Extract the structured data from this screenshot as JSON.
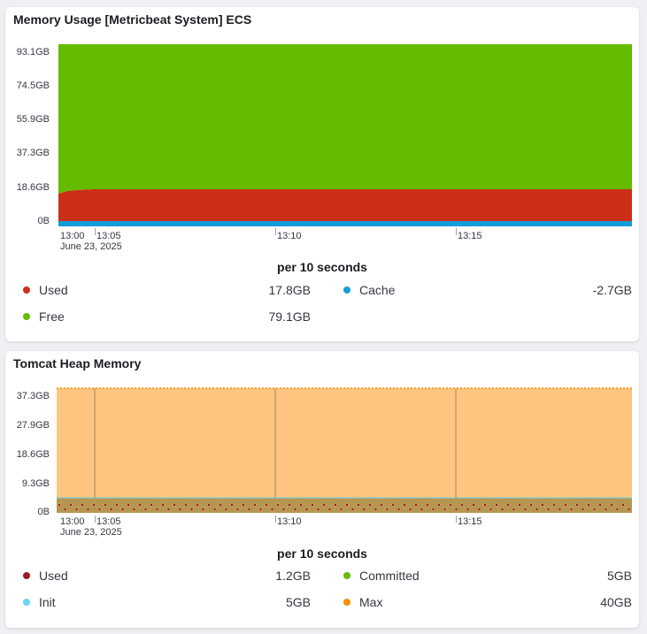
{
  "panel1": {
    "title": "Memory Usage [Metricbeat System] ECS",
    "y_ticks": [
      "93.1GB",
      "74.5GB",
      "55.9GB",
      "37.3GB",
      "18.6GB",
      "0B"
    ],
    "x_ticks": [
      "13:00",
      "13:05",
      "13:10",
      "13:15"
    ],
    "x_date": "June 23, 2025",
    "interval": "per 10 seconds",
    "legend": [
      {
        "name": "Used",
        "value": "17.8GB",
        "color": "#cc2f18"
      },
      {
        "name": "Cache",
        "value": "-2.7GB",
        "color": "#169cd8"
      },
      {
        "name": "Free",
        "value": "79.1GB",
        "color": "#64bb00"
      }
    ]
  },
  "panel2": {
    "title": "Tomcat Heap Memory",
    "y_ticks": [
      "37.3GB",
      "27.9GB",
      "18.6GB",
      "9.3GB",
      "0B"
    ],
    "x_ticks": [
      "13:00",
      "13:05",
      "13:10",
      "13:15"
    ],
    "x_date": "June 23, 2025",
    "interval": "per 10 seconds",
    "legend": [
      {
        "name": "Used",
        "value": "1.2GB",
        "color": "#9b1c1c"
      },
      {
        "name": "Committed",
        "value": "5GB",
        "color": "#64bb00"
      },
      {
        "name": "Init",
        "value": "5GB",
        "color": "#6ed3f2"
      },
      {
        "name": "Max",
        "value": "40GB",
        "color": "#f5900a"
      }
    ]
  },
  "chart_data": [
    {
      "type": "area",
      "title": "Memory Usage [Metricbeat System] ECS",
      "x": [
        "13:00",
        "13:05",
        "13:10",
        "13:15",
        "13:19"
      ],
      "ylim": [
        0,
        93.1
      ],
      "series": [
        {
          "name": "Used",
          "values": [
            15.8,
            17.8,
            17.8,
            17.8,
            17.8
          ]
        },
        {
          "name": "Cache",
          "values": [
            -2.7,
            -2.7,
            -2.7,
            -2.7,
            -2.7
          ]
        },
        {
          "name": "Free",
          "values": [
            79.1,
            79.1,
            79.1,
            79.1,
            79.1
          ]
        }
      ]
    },
    {
      "type": "area",
      "title": "Tomcat Heap Memory",
      "x": [
        "13:00",
        "13:05",
        "13:10",
        "13:15",
        "13:19"
      ],
      "ylim": [
        0,
        40
      ],
      "series": [
        {
          "name": "Used",
          "values": [
            1.2,
            1.2,
            1.2,
            1.2,
            1.2
          ]
        },
        {
          "name": "Committed",
          "values": [
            5,
            5,
            5,
            5,
            5
          ]
        },
        {
          "name": "Init",
          "values": [
            5,
            5,
            5,
            5,
            5
          ]
        },
        {
          "name": "Max",
          "values": [
            40,
            40,
            40,
            40,
            40
          ]
        }
      ]
    }
  ]
}
